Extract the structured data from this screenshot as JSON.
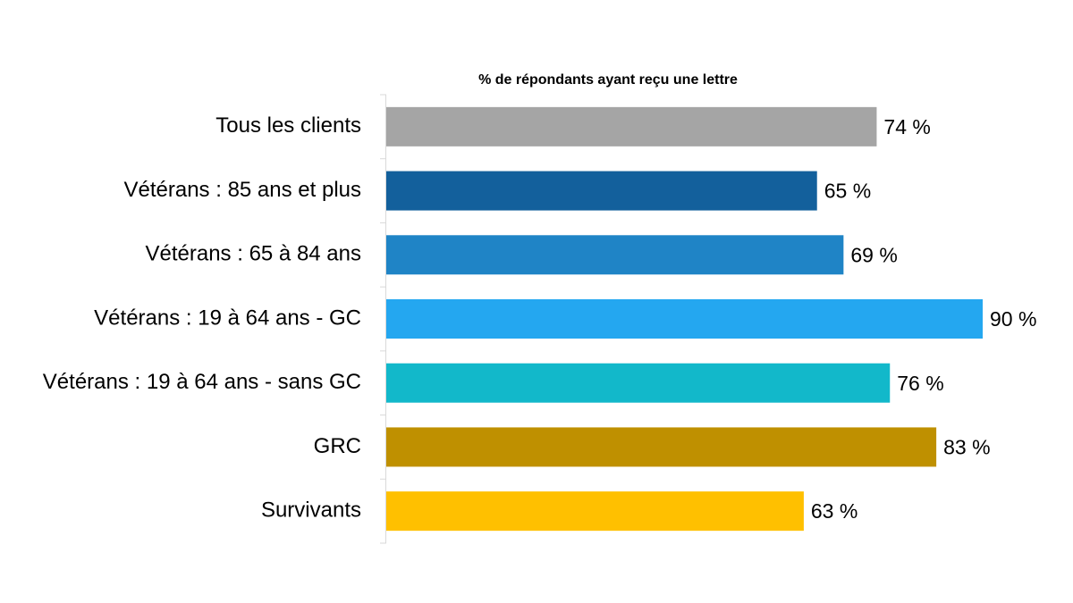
{
  "chart_data": {
    "type": "bar",
    "title": "% de répondants ayant reçu une lettre",
    "categories": [
      "Tous les clients",
      "Vétérans : 85 ans et plus",
      "Vétérans : 65 à 84 ans",
      "Vétérans : 19 à 64 ans - GC",
      "Vétérans : 19 à 64 ans - sans GC",
      "GRC",
      "Survivants"
    ],
    "values": [
      74,
      65,
      69,
      90,
      76,
      83,
      63
    ],
    "value_labels": [
      "74 %",
      "65 %",
      "69 %",
      "90 %",
      "76 %",
      "83 %",
      "63 %"
    ],
    "colors": [
      "#a5a5a5",
      "#13609c",
      "#1f84c6",
      "#24a7f0",
      "#12b8ca",
      "#bf9000",
      "#ffc000"
    ]
  }
}
